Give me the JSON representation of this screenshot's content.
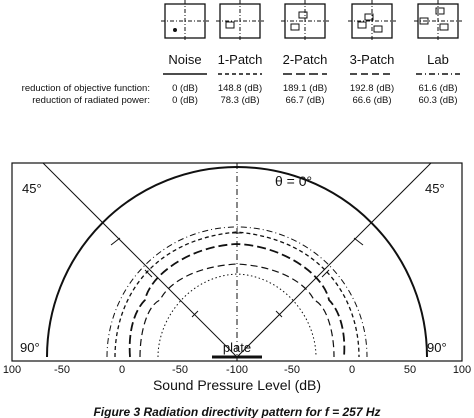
{
  "legend": {
    "columns": [
      "Noise",
      "1-Patch",
      "2-Patch",
      "3-Patch",
      "Lab"
    ],
    "rows": [
      {
        "label": "reduction of objective function:",
        "values": [
          "0 (dB)",
          "148.8 (dB)",
          "189.1 (dB)",
          "192.8 (dB)",
          "61.6 (dB)"
        ]
      },
      {
        "label": "reduction of radiated power:",
        "values": [
          "0 (dB)",
          "78.3 (dB)",
          "66.7 (dB)",
          "66.6 (dB)",
          "60.3 (dB)"
        ]
      }
    ]
  },
  "plot": {
    "theta_label": "θ = 0°",
    "angle_labels": [
      "45°",
      "45°",
      "90°",
      "90°"
    ],
    "plate_label": "plate",
    "axis_ticks": [
      "100",
      "-50",
      "0",
      "-50",
      "-100",
      "-50",
      "0",
      "50",
      "100"
    ],
    "axis_title": "Sound Pressure Level (dB)"
  },
  "caption": "Figure 3  Radiation directivity pattern for f = 257 Hz"
}
